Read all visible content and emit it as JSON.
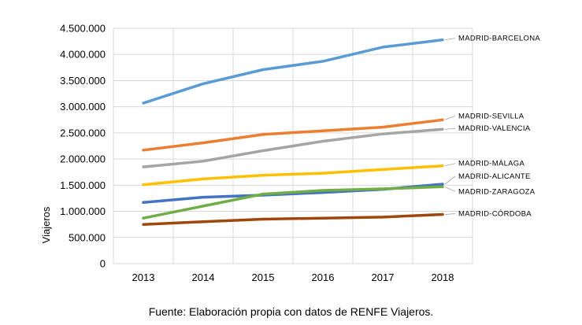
{
  "chart_data": {
    "type": "line",
    "categories": [
      "2013",
      "2014",
      "2015",
      "2016",
      "2017",
      "2018"
    ],
    "ylabel": "Viajeros",
    "ylim": [
      0,
      4500000
    ],
    "y_step": 500000,
    "y_tick_labels": [
      "0",
      "500.000",
      "1.000.000",
      "1.500.000",
      "2.000.000",
      "2.500.000",
      "3.000.000",
      "3.500.000",
      "4.000.000",
      "4.500.000"
    ],
    "grid": true,
    "legend": "inline labels at line ends",
    "series": [
      {
        "name": "MADRID-BARCELONA",
        "color": "#5b9bd5",
        "values": [
          3070000,
          3440000,
          3710000,
          3870000,
          4140000,
          4280000
        ]
      },
      {
        "name": "MADRID-SEVILLA",
        "color": "#ed7d31",
        "values": [
          2170000,
          2310000,
          2470000,
          2540000,
          2610000,
          2750000
        ]
      },
      {
        "name": "MADRID-VALENCIA",
        "color": "#a5a5a5",
        "values": [
          1850000,
          1960000,
          2160000,
          2340000,
          2480000,
          2570000
        ]
      },
      {
        "name": "MADRID-MÁLAGA",
        "color": "#ffc000",
        "values": [
          1510000,
          1620000,
          1690000,
          1730000,
          1800000,
          1870000
        ]
      },
      {
        "name": "MADRID-ALICANTE",
        "color": "#4472c4",
        "values": [
          1170000,
          1270000,
          1310000,
          1360000,
          1420000,
          1520000
        ]
      },
      {
        "name": "MADRID-ZARAGOZA",
        "color": "#70ad47",
        "values": [
          870000,
          1100000,
          1330000,
          1400000,
          1430000,
          1470000
        ]
      },
      {
        "name": "MADRID-CÓRDOBA",
        "color": "#9e480e",
        "values": [
          750000,
          800000,
          850000,
          870000,
          890000,
          940000
        ]
      }
    ]
  },
  "caption": "Fuente: Elaboración propia con datos de RENFE Viajeros."
}
